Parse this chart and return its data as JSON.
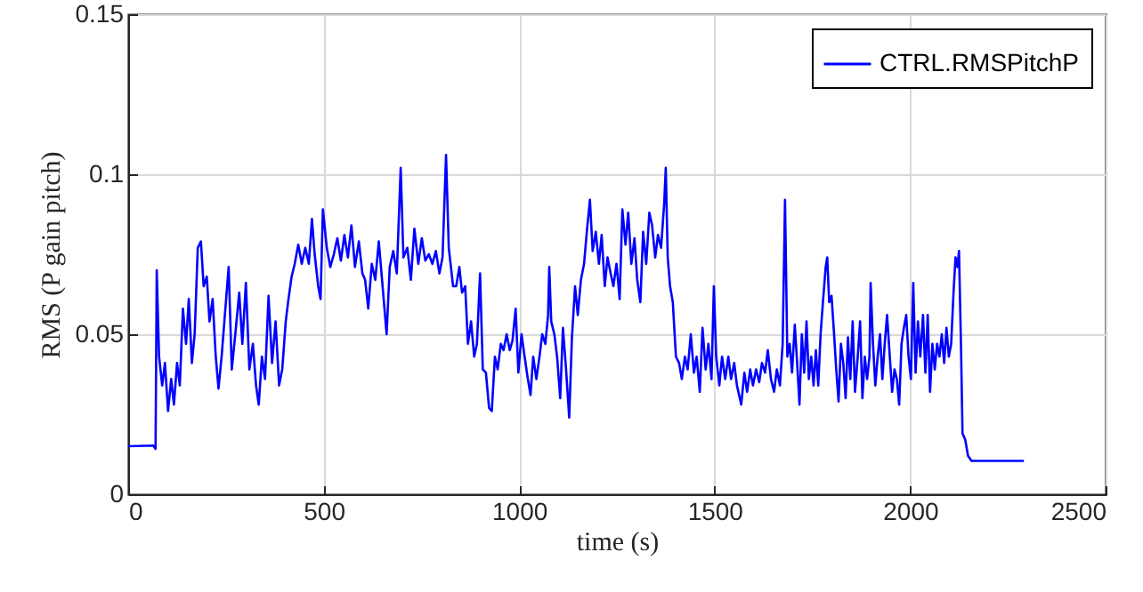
{
  "chart_data": {
    "type": "line",
    "xlabel": "time (s)",
    "ylabel": "RMS (P gain pitch)",
    "xlim": [
      0,
      2500
    ],
    "xticks": [
      0,
      500,
      1000,
      1500,
      2000,
      2500
    ],
    "ylim": [
      0,
      0.15
    ],
    "yticks": [
      0,
      0.05,
      0.1,
      0.15
    ],
    "grid": true,
    "legend": "top right",
    "x": [
      0,
      64,
      70,
      73,
      79,
      87,
      94,
      102,
      110,
      117,
      125,
      132,
      140,
      148,
      155,
      163,
      170,
      178,
      186,
      193,
      201,
      208,
      216,
      224,
      231,
      239,
      246,
      257,
      265,
      274,
      284,
      292,
      301,
      310,
      319,
      327,
      334,
      342,
      350,
      359,
      368,
      377,
      386,
      394,
      403,
      410,
      418,
      426,
      435,
      444,
      453,
      462,
      470,
      477,
      486,
      492,
      498,
      508,
      517,
      526,
      535,
      544,
      553,
      562,
      571,
      580,
      590,
      599,
      606,
      614,
      623,
      632,
      641,
      650,
      661,
      669,
      678,
      687,
      697,
      704,
      714,
      723,
      732,
      742,
      751,
      760,
      769,
      778,
      787,
      796,
      804,
      813,
      820,
      831,
      839,
      847,
      854,
      862,
      869,
      877,
      885,
      892,
      900,
      907,
      915,
      923,
      930,
      938,
      945,
      953,
      960,
      968,
      976,
      983,
      991,
      998,
      1006,
      1014,
      1021,
      1029,
      1036,
      1044,
      1052,
      1059,
      1067,
      1074,
      1077,
      1082,
      1090,
      1097,
      1105,
      1112,
      1120,
      1128,
      1135,
      1143,
      1150,
      1158,
      1166,
      1173,
      1181,
      1188,
      1196,
      1204,
      1211,
      1219,
      1226,
      1234,
      1241,
      1249,
      1257,
      1264,
      1272,
      1279,
      1287,
      1295,
      1302,
      1310,
      1317,
      1325,
      1333,
      1340,
      1348,
      1355,
      1363,
      1371,
      1375,
      1380,
      1386,
      1393,
      1401,
      1409,
      1416,
      1424,
      1431,
      1439,
      1447,
      1454,
      1462,
      1469,
      1477,
      1484,
      1492,
      1498,
      1504,
      1512,
      1519,
      1527,
      1535,
      1542,
      1550,
      1557,
      1568,
      1576,
      1583,
      1591,
      1598,
      1606,
      1614,
      1621,
      1629,
      1636,
      1644,
      1652,
      1659,
      1667,
      1674,
      1680,
      1686,
      1692,
      1698,
      1705,
      1711,
      1717,
      1723,
      1729,
      1735,
      1741,
      1747,
      1753,
      1759,
      1765,
      1771,
      1777,
      1784,
      1788,
      1793,
      1799,
      1805,
      1811,
      1817,
      1823,
      1829,
      1835,
      1841,
      1847,
      1853,
      1859,
      1866,
      1872,
      1878,
      1884,
      1890,
      1896,
      1899,
      1905,
      1911,
      1917,
      1923,
      1929,
      1935,
      1941,
      1948,
      1954,
      1960,
      1966,
      1972,
      1978,
      1984,
      1990,
      1996,
      2002,
      2008,
      2014,
      2020,
      2026,
      2033,
      2039,
      2045,
      2051,
      2057,
      2063,
      2069,
      2075,
      2081,
      2087,
      2093,
      2099,
      2105,
      2111,
      2116,
      2121,
      2125,
      2130,
      2134,
      2141,
      2148,
      2157,
      2291
    ],
    "series": [
      {
        "name": "CTRL.RMSPitchP",
        "color": "#0000ff",
        "values": [
          0.015,
          0.0152,
          0.0142,
          0.07,
          0.043,
          0.034,
          0.041,
          0.026,
          0.036,
          0.028,
          0.041,
          0.034,
          0.058,
          0.047,
          0.061,
          0.041,
          0.05,
          0.077,
          0.079,
          0.065,
          0.068,
          0.054,
          0.061,
          0.043,
          0.033,
          0.043,
          0.054,
          0.071,
          0.039,
          0.05,
          0.063,
          0.047,
          0.066,
          0.039,
          0.047,
          0.034,
          0.028,
          0.043,
          0.036,
          0.062,
          0.041,
          0.054,
          0.034,
          0.039,
          0.054,
          0.061,
          0.068,
          0.072,
          0.078,
          0.072,
          0.077,
          0.072,
          0.086,
          0.075,
          0.065,
          0.061,
          0.089,
          0.077,
          0.071,
          0.075,
          0.08,
          0.073,
          0.081,
          0.074,
          0.084,
          0.071,
          0.079,
          0.069,
          0.067,
          0.058,
          0.072,
          0.067,
          0.079,
          0.066,
          0.05,
          0.071,
          0.076,
          0.069,
          0.102,
          0.074,
          0.077,
          0.067,
          0.083,
          0.072,
          0.08,
          0.073,
          0.075,
          0.072,
          0.076,
          0.069,
          0.074,
          0.106,
          0.077,
          0.065,
          0.065,
          0.071,
          0.063,
          0.065,
          0.047,
          0.054,
          0.043,
          0.047,
          0.069,
          0.039,
          0.038,
          0.027,
          0.026,
          0.043,
          0.039,
          0.047,
          0.045,
          0.05,
          0.045,
          0.048,
          0.058,
          0.038,
          0.05,
          0.043,
          0.037,
          0.031,
          0.043,
          0.036,
          0.043,
          0.05,
          0.047,
          0.056,
          0.071,
          0.054,
          0.05,
          0.043,
          0.03,
          0.052,
          0.039,
          0.024,
          0.049,
          0.065,
          0.056,
          0.067,
          0.072,
          0.082,
          0.092,
          0.076,
          0.082,
          0.072,
          0.081,
          0.065,
          0.074,
          0.069,
          0.065,
          0.072,
          0.061,
          0.089,
          0.078,
          0.088,
          0.072,
          0.08,
          0.067,
          0.06,
          0.082,
          0.072,
          0.088,
          0.084,
          0.074,
          0.081,
          0.077,
          0.091,
          0.102,
          0.074,
          0.065,
          0.06,
          0.043,
          0.041,
          0.036,
          0.043,
          0.039,
          0.05,
          0.038,
          0.043,
          0.032,
          0.052,
          0.039,
          0.047,
          0.036,
          0.065,
          0.043,
          0.034,
          0.043,
          0.036,
          0.043,
          0.036,
          0.041,
          0.034,
          0.028,
          0.038,
          0.032,
          0.039,
          0.034,
          0.039,
          0.035,
          0.041,
          0.038,
          0.045,
          0.036,
          0.032,
          0.039,
          0.034,
          0.047,
          0.092,
          0.043,
          0.047,
          0.038,
          0.053,
          0.041,
          0.028,
          0.05,
          0.038,
          0.054,
          0.036,
          0.043,
          0.034,
          0.045,
          0.034,
          0.05,
          0.06,
          0.071,
          0.074,
          0.06,
          0.062,
          0.051,
          0.039,
          0.029,
          0.047,
          0.041,
          0.03,
          0.049,
          0.036,
          0.054,
          0.032,
          0.043,
          0.054,
          0.03,
          0.043,
          0.036,
          0.043,
          0.066,
          0.047,
          0.034,
          0.043,
          0.05,
          0.036,
          0.047,
          0.056,
          0.043,
          0.032,
          0.039,
          0.036,
          0.028,
          0.047,
          0.052,
          0.056,
          0.043,
          0.036,
          0.066,
          0.038,
          0.054,
          0.043,
          0.056,
          0.038,
          0.056,
          0.032,
          0.047,
          0.039,
          0.047,
          0.043,
          0.05,
          0.041,
          0.052,
          0.043,
          0.047,
          0.063,
          0.074,
          0.071,
          0.076,
          0.047,
          0.019,
          0.017,
          0.012,
          0.0104,
          0.0104
        ]
      }
    ]
  }
}
